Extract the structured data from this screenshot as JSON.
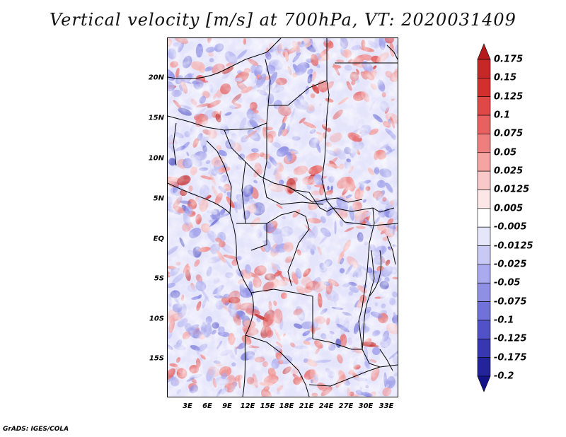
{
  "title": "Vertical velocity [m/s] at 700hPa, VT: 2020031409",
  "credit": "GrADS: IGES/COLA",
  "lat_labels": [
    "20N",
    "15N",
    "10N",
    "5N",
    "EQ",
    "5S",
    "10S",
    "15S"
  ],
  "lon_labels": [
    "3E",
    "6E",
    "9E",
    "12E",
    "15E",
    "18E",
    "21E",
    "24E",
    "27E",
    "30E",
    "33E"
  ],
  "colorbar": {
    "labels": [
      "0.175",
      "0.15",
      "0.125",
      "0.1",
      "0.075",
      "0.05",
      "0.025",
      "0.0125",
      "0.005",
      "-0.005",
      "-0.0125",
      "-0.025",
      "-0.05",
      "-0.075",
      "-0.1",
      "-0.125",
      "-0.175",
      "-0.2"
    ],
    "colors": [
      "#b71c1c",
      "#c62828",
      "#d32f2f",
      "#e04848",
      "#e86060",
      "#ef7f7f",
      "#f5a3a3",
      "#f9c8c8",
      "#fde6e6",
      "#ffffff",
      "#e6e6fb",
      "#c9c9f5",
      "#aaaaee",
      "#8f8fe4",
      "#7171da",
      "#5252c8",
      "#3737b2",
      "#23239c",
      "#14148a"
    ]
  }
}
